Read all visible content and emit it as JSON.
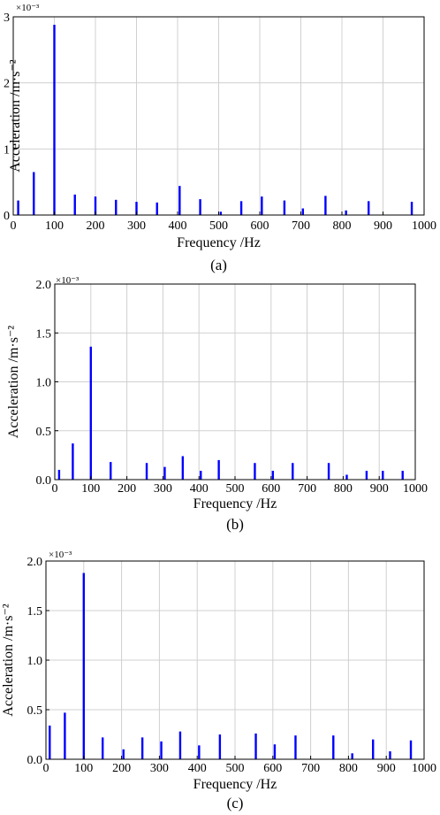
{
  "colors": {
    "bar": "#0000ff",
    "grid": "#d0d0d0",
    "axis": "#000000"
  },
  "chart_data": [
    {
      "type": "bar",
      "panel_label": "(a)",
      "xlabel": "Frequency /Hz",
      "ylabel": "Acceleration /m·s⁻²",
      "exponent_label": "×10⁻³",
      "xlim": [
        0,
        1000
      ],
      "ylim": [
        0,
        3
      ],
      "xticks": [
        0,
        100,
        200,
        300,
        400,
        500,
        600,
        700,
        800,
        900,
        1000
      ],
      "xtick_labels": [
        "0",
        "100",
        "200",
        "300",
        "400",
        "500",
        "600",
        "700",
        "800",
        "900",
        "1000"
      ],
      "yticks": [
        0,
        1,
        2,
        3
      ],
      "ytick_labels": [
        "0",
        "1",
        "2",
        "3"
      ],
      "grid": true,
      "x": [
        12,
        50,
        100,
        150,
        200,
        250,
        300,
        350,
        405,
        455,
        505,
        555,
        605,
        660,
        705,
        760,
        810,
        865,
        970
      ],
      "values": [
        0.22,
        0.65,
        2.88,
        0.31,
        0.28,
        0.23,
        0.2,
        0.19,
        0.44,
        0.24,
        0.05,
        0.21,
        0.28,
        0.22,
        0.1,
        0.29,
        0.07,
        0.21,
        0.2
      ]
    },
    {
      "type": "bar",
      "panel_label": "(b)",
      "xlabel": "Frequency /Hz",
      "ylabel": "Acceleration /m·s⁻²",
      "exponent_label": "×10⁻³",
      "xlim": [
        0,
        1000
      ],
      "ylim": [
        0,
        2
      ],
      "xticks": [
        0,
        100,
        200,
        300,
        400,
        500,
        600,
        700,
        800,
        900,
        1000
      ],
      "xtick_labels": [
        "0",
        "100",
        "200",
        "300",
        "400",
        "500",
        "600",
        "700",
        "800",
        "900",
        "1000"
      ],
      "yticks": [
        0,
        0.5,
        1,
        1.5,
        2
      ],
      "ytick_labels": [
        "0.0",
        "0.5",
        "1.0",
        "1.5",
        "2.0"
      ],
      "grid": true,
      "x": [
        12,
        50,
        100,
        155,
        255,
        305,
        355,
        405,
        455,
        555,
        605,
        660,
        760,
        810,
        865,
        910,
        965
      ],
      "values": [
        0.1,
        0.37,
        1.36,
        0.18,
        0.17,
        0.13,
        0.24,
        0.09,
        0.2,
        0.17,
        0.09,
        0.17,
        0.17,
        0.05,
        0.09,
        0.09,
        0.09
      ]
    },
    {
      "type": "bar",
      "panel_label": "(c)",
      "xlabel": "Frequency /Hz",
      "ylabel": "Acceleration /m·s⁻²",
      "exponent_label": "×10⁻³",
      "xlim": [
        0,
        1000
      ],
      "ylim": [
        0,
        2
      ],
      "xticks": [
        0,
        100,
        200,
        300,
        400,
        500,
        600,
        700,
        800,
        900,
        1000
      ],
      "xtick_labels": [
        "0",
        "100",
        "200",
        "300",
        "400",
        "500",
        "600",
        "700",
        "800",
        "900",
        "1000"
      ],
      "yticks": [
        0,
        0.5,
        1,
        1.5,
        2
      ],
      "ytick_labels": [
        "0.0",
        "0.5",
        "1.0",
        "1.5",
        "2.0"
      ],
      "grid": true,
      "x": [
        10,
        50,
        100,
        150,
        205,
        255,
        305,
        355,
        405,
        460,
        555,
        605,
        660,
        760,
        810,
        865,
        910,
        965
      ],
      "values": [
        0.34,
        0.47,
        1.88,
        0.22,
        0.1,
        0.22,
        0.18,
        0.28,
        0.14,
        0.25,
        0.26,
        0.15,
        0.24,
        0.24,
        0.06,
        0.2,
        0.08,
        0.19
      ]
    }
  ]
}
